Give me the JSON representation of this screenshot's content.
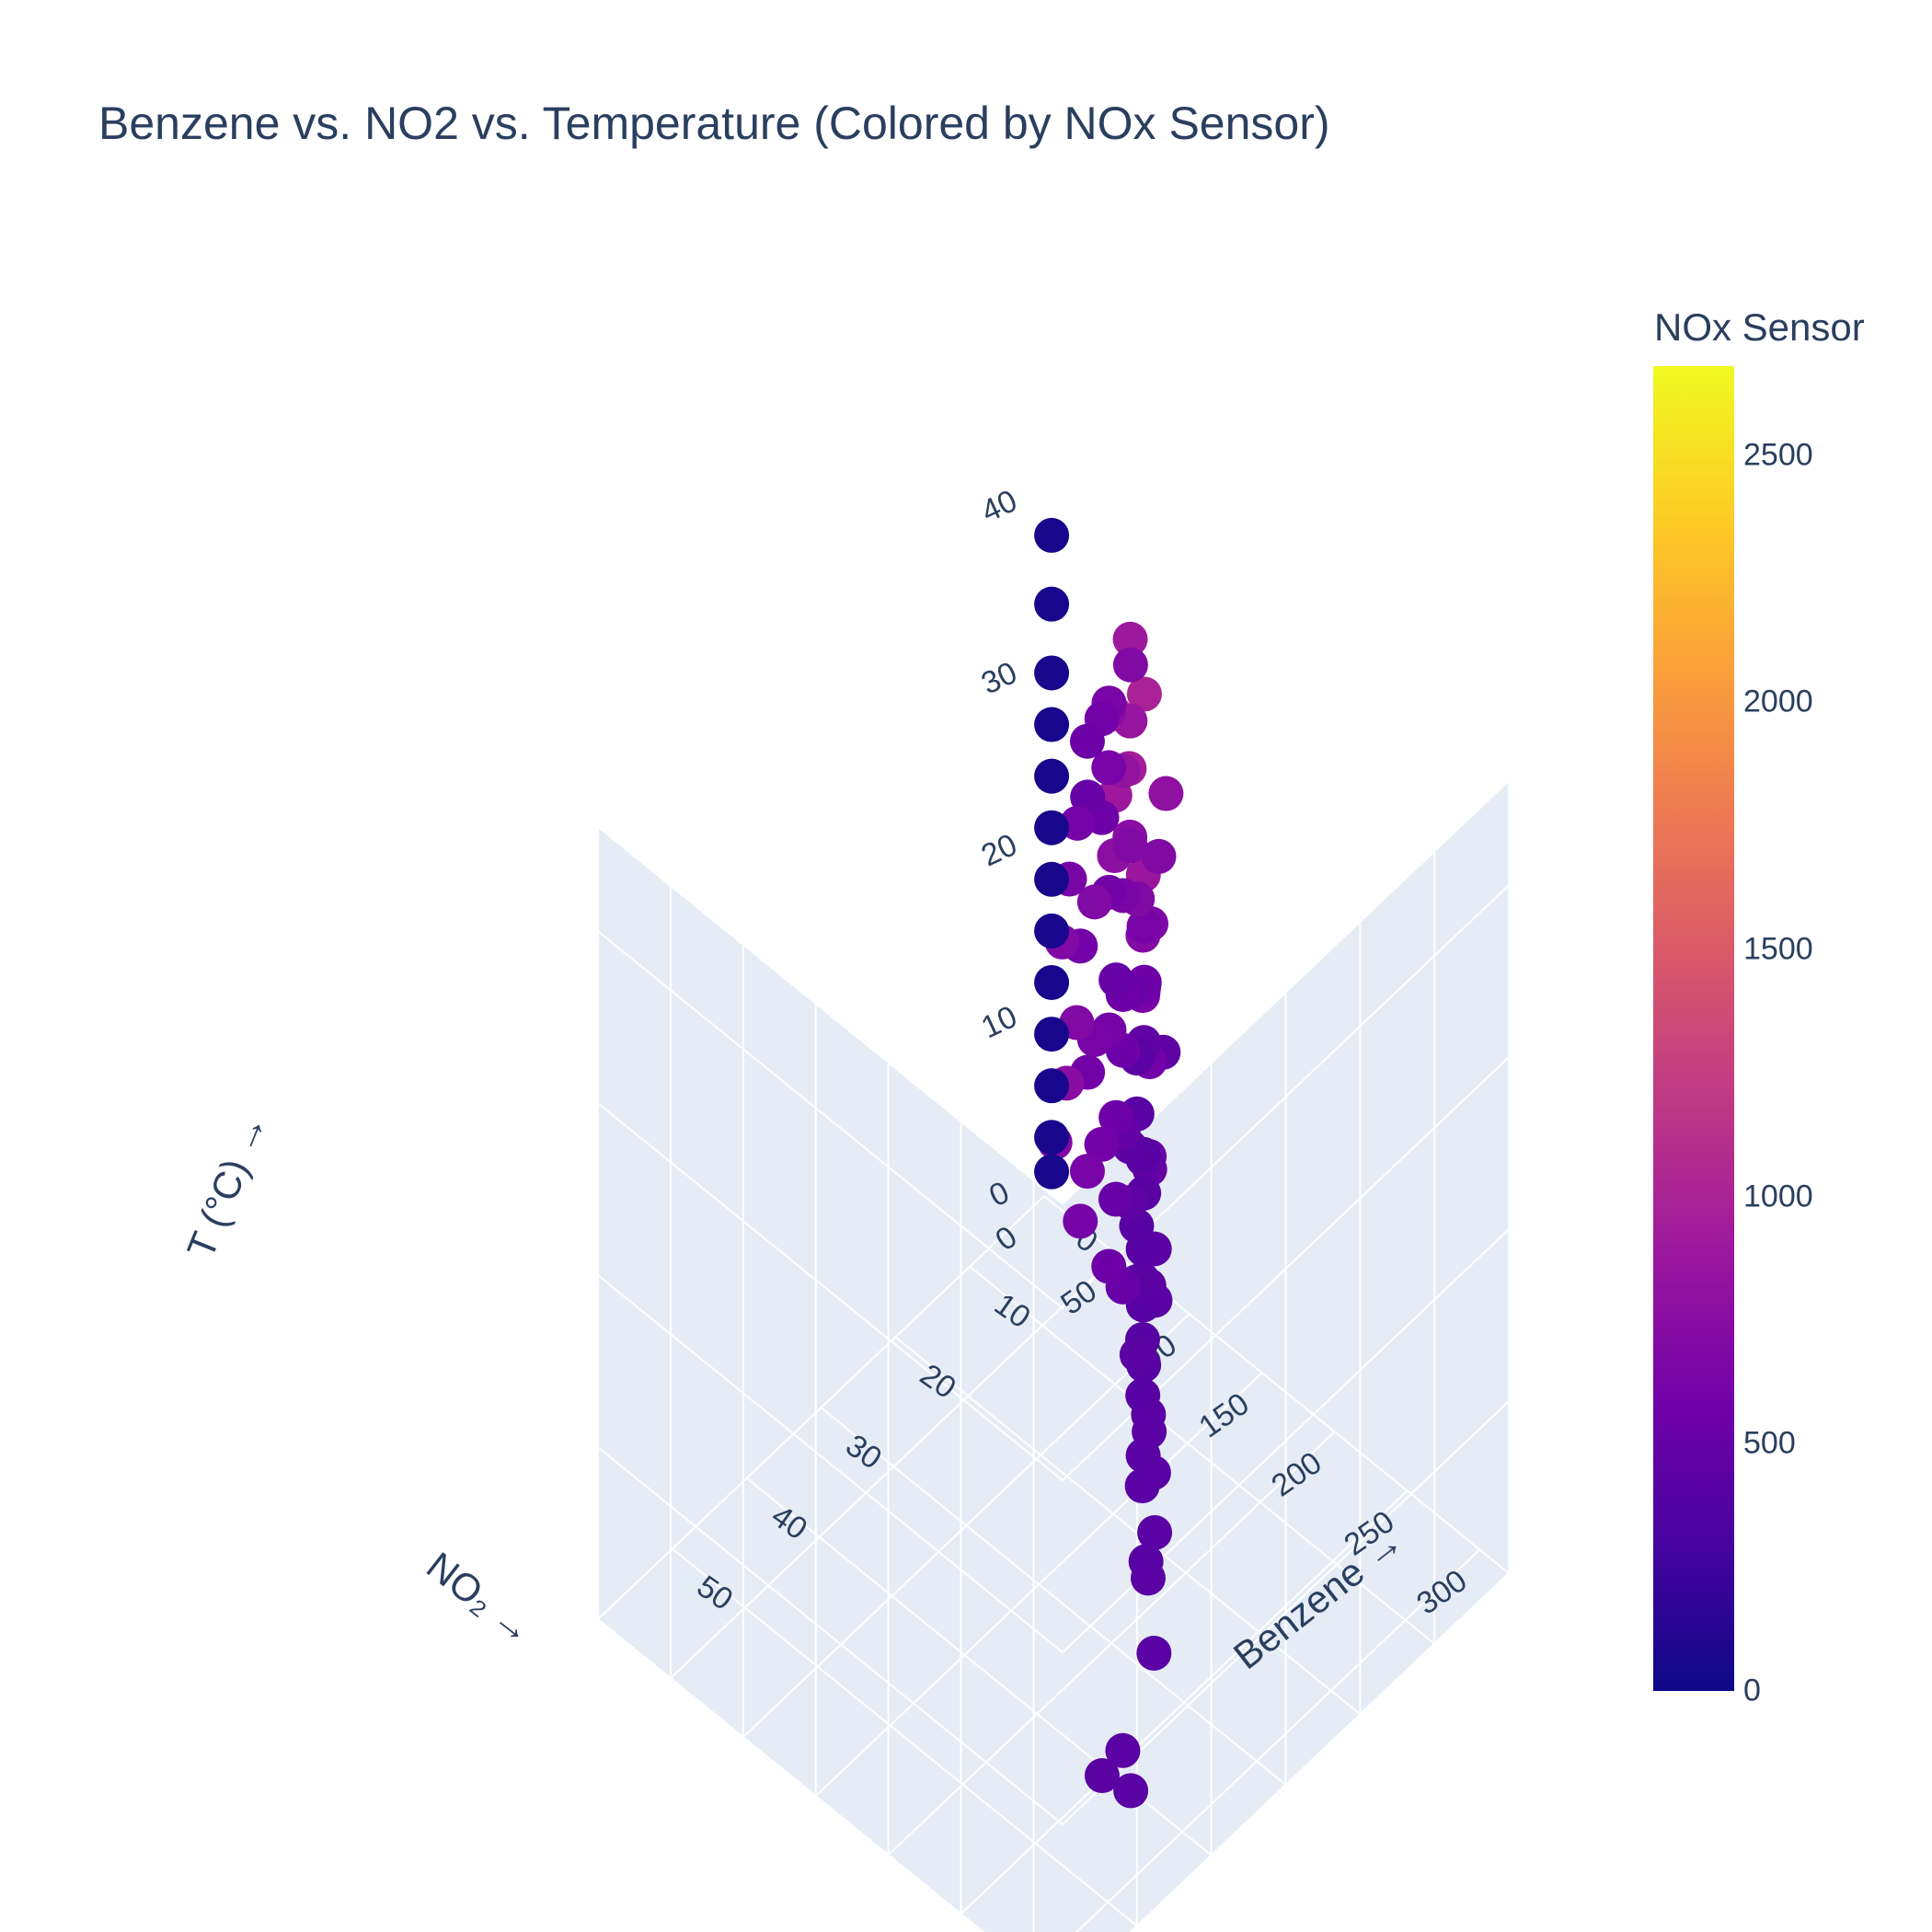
{
  "chart_data": {
    "type": "scatter3d",
    "title": "Benzene vs. NO2 vs. Temperature (Colored by NOx Sensor)",
    "x_axis": {
      "label": "Benzene →",
      "ticks": [
        "0",
        "10",
        "20",
        "30",
        "40",
        "50"
      ],
      "range": [
        0,
        60
      ]
    },
    "y_axis": {
      "label": "NO₂ →",
      "ticks": [
        "0",
        "50",
        "100",
        "150",
        "200",
        "250",
        "300"
      ],
      "range": [
        0,
        320
      ]
    },
    "z_axis": {
      "label": "T (°C) →",
      "ticks": [
        "0",
        "10",
        "20",
        "30",
        "40"
      ],
      "range": [
        0,
        46
      ]
    },
    "colorbar": {
      "title": "NOx Sensor",
      "ticks": [
        "0",
        "500",
        "1000",
        "1500",
        "2000",
        "2500"
      ],
      "range": [
        0,
        2680
      ],
      "colorscale": [
        "#0d0887",
        "#46039f",
        "#7201a8",
        "#9c179e",
        "#bd3786",
        "#d8576b",
        "#ed7953",
        "#fb9f3a",
        "#fdca26",
        "#f0f921"
      ]
    },
    "points": [
      [
        6,
        90,
        41,
        900
      ],
      [
        8,
        110,
        40,
        1000
      ],
      [
        10,
        100,
        39,
        1100
      ],
      [
        4,
        80,
        38,
        700
      ],
      [
        7,
        95,
        37,
        850
      ],
      [
        12,
        120,
        38,
        950
      ],
      [
        9,
        130,
        36,
        800
      ],
      [
        5,
        70,
        35,
        750
      ],
      [
        11,
        105,
        35,
        900
      ],
      [
        3,
        60,
        34,
        650
      ],
      [
        14,
        140,
        34,
        880
      ],
      [
        6,
        85,
        33,
        820
      ],
      [
        13,
        115,
        33,
        780
      ],
      [
        2,
        50,
        32,
        600
      ],
      [
        9,
        125,
        32,
        700
      ],
      [
        16,
        150,
        32,
        720
      ],
      [
        4,
        65,
        31,
        640
      ],
      [
        8,
        100,
        31,
        760
      ],
      [
        12,
        135,
        30,
        690
      ],
      [
        18,
        160,
        30,
        650
      ],
      [
        2,
        40,
        30,
        560
      ],
      [
        6,
        90,
        29,
        700
      ],
      [
        10,
        120,
        28,
        640
      ],
      [
        15,
        145,
        28,
        620
      ],
      [
        20,
        175,
        28,
        600
      ],
      [
        3,
        55,
        27,
        560
      ],
      [
        7,
        100,
        27,
        700
      ],
      [
        12,
        130,
        26,
        600
      ],
      [
        17,
        155,
        26,
        580
      ],
      [
        1,
        35,
        26,
        520
      ],
      [
        5,
        80,
        25,
        650
      ],
      [
        9,
        115,
        24,
        560
      ],
      [
        14,
        140,
        24,
        550
      ],
      [
        22,
        185,
        24,
        540
      ],
      [
        3,
        60,
        23,
        600
      ],
      [
        8,
        100,
        22,
        520
      ],
      [
        11,
        125,
        22,
        480
      ],
      [
        19,
        170,
        21,
        500
      ],
      [
        2,
        45,
        21,
        700
      ],
      [
        6,
        85,
        20,
        560
      ],
      [
        10,
        115,
        20,
        440
      ],
      [
        16,
        150,
        19,
        470
      ],
      [
        4,
        70,
        19,
        520
      ],
      [
        24,
        195,
        18,
        450
      ],
      [
        7,
        100,
        18,
        430
      ],
      [
        13,
        135,
        17,
        420
      ],
      [
        1,
        30,
        17,
        600
      ],
      [
        5,
        80,
        16,
        560
      ],
      [
        9,
        110,
        16,
        430
      ],
      [
        20,
        170,
        15,
        430
      ],
      [
        3,
        60,
        15,
        620
      ],
      [
        12,
        130,
        14,
        420
      ],
      [
        8,
        100,
        13,
        440
      ],
      [
        2,
        45,
        13,
        640
      ],
      [
        15,
        145,
        13,
        420
      ],
      [
        6,
        85,
        12,
        500
      ],
      [
        26,
        205,
        12,
        430
      ],
      [
        11,
        120,
        11,
        420
      ],
      [
        4,
        70,
        11,
        560
      ],
      [
        18,
        160,
        10,
        420
      ],
      [
        1,
        35,
        10,
        600
      ],
      [
        7,
        95,
        9,
        460
      ],
      [
        14,
        140,
        9,
        420
      ],
      [
        22,
        185,
        8,
        430
      ],
      [
        3,
        55,
        8,
        600
      ],
      [
        10,
        115,
        7,
        430
      ],
      [
        5,
        75,
        7,
        520
      ],
      [
        17,
        155,
        6,
        420
      ],
      [
        8,
        100,
        5,
        440
      ],
      [
        2,
        40,
        5,
        640
      ],
      [
        12,
        130,
        4,
        420
      ],
      [
        28,
        215,
        4,
        430
      ],
      [
        6,
        85,
        3,
        520
      ],
      [
        20,
        170,
        3,
        430
      ],
      [
        9,
        110,
        2,
        440
      ],
      [
        4,
        65,
        2,
        560
      ],
      [
        15,
        145,
        1,
        430
      ],
      [
        1,
        30,
        1,
        620
      ],
      [
        32,
        240,
        10,
        430
      ],
      [
        36,
        260,
        6,
        430
      ],
      [
        40,
        275,
        14,
        420
      ],
      [
        30,
        230,
        22,
        430
      ],
      [
        44,
        285,
        3,
        430
      ],
      [
        34,
        250,
        28,
        450
      ],
      [
        25,
        210,
        33,
        470
      ],
      [
        48,
        300,
        8,
        430
      ],
      [
        38,
        270,
        18,
        430
      ],
      [
        42,
        255,
        1,
        440
      ],
      [
        0.5,
        20,
        20,
        650
      ],
      [
        0.5,
        15,
        16,
        700
      ],
      [
        0.5,
        25,
        12,
        700
      ],
      [
        0.5,
        18,
        8,
        760
      ],
      [
        1,
        28,
        24,
        620
      ],
      [
        0.5,
        10,
        4,
        700
      ],
      [
        -1,
        0,
        38,
        60
      ],
      [
        -1,
        0,
        34,
        60
      ],
      [
        -1,
        0,
        30,
        60
      ],
      [
        -1,
        0,
        27,
        60
      ],
      [
        -1,
        0,
        24,
        60
      ],
      [
        -1,
        0,
        21,
        60
      ],
      [
        -1,
        0,
        18,
        60
      ],
      [
        -1,
        0,
        15,
        60
      ],
      [
        -1,
        0,
        12,
        60
      ],
      [
        -1,
        0,
        9,
        60
      ],
      [
        -1,
        0,
        6,
        60
      ],
      [
        -1,
        0,
        3,
        60
      ],
      [
        -1,
        0,
        1,
        60
      ]
    ]
  }
}
